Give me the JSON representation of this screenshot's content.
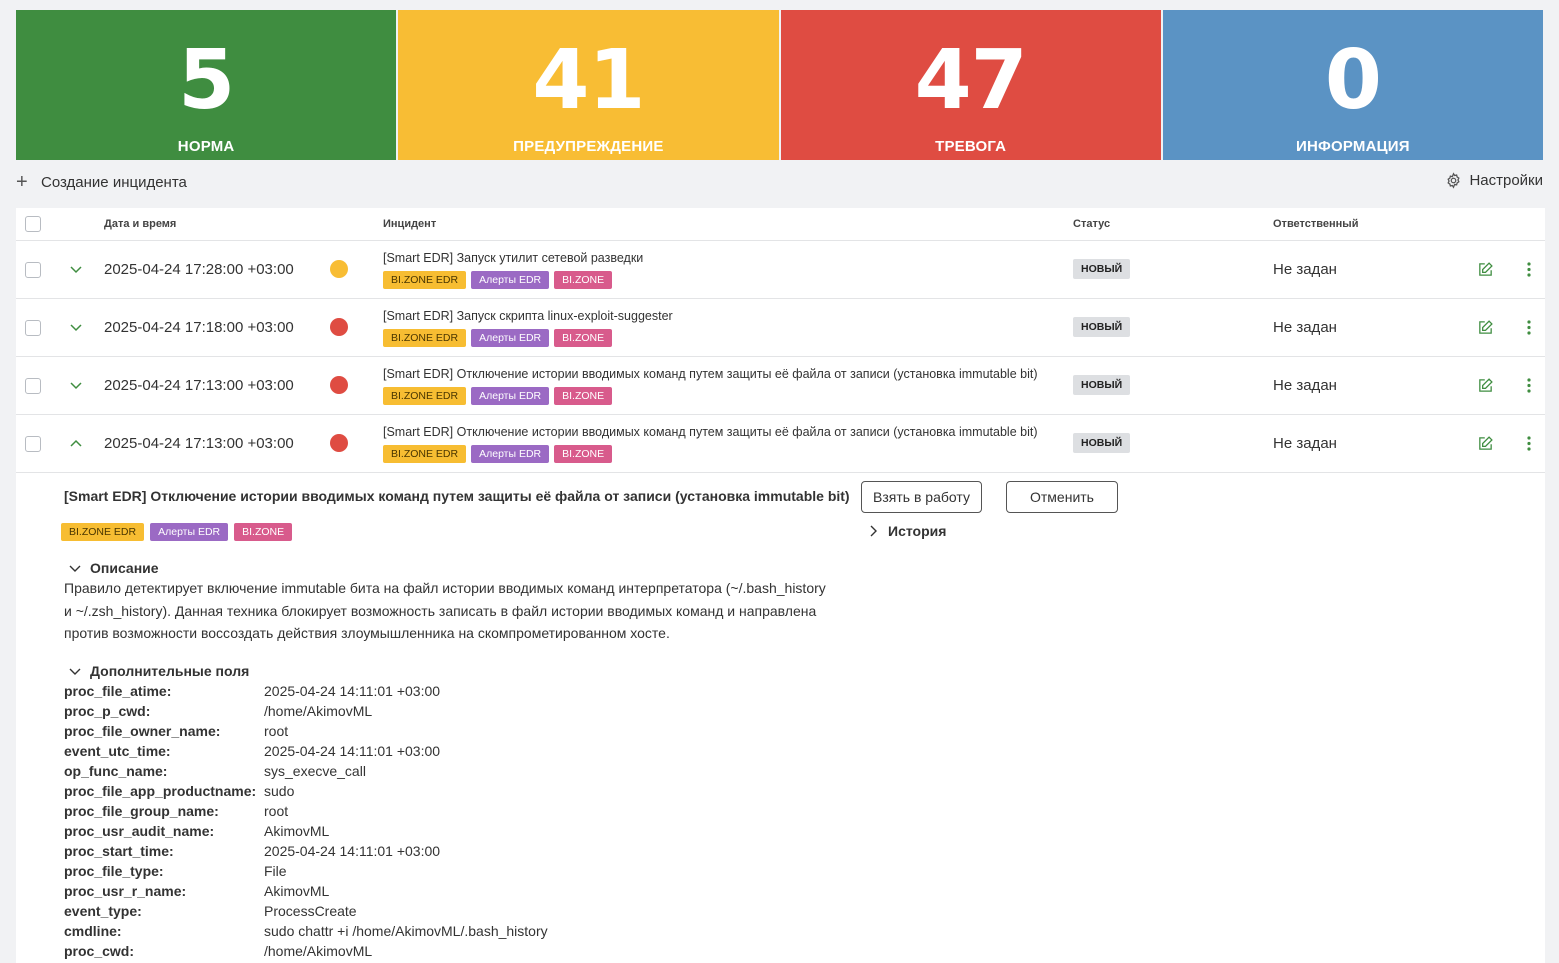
{
  "summary": [
    {
      "count": "5",
      "label": "НОРМА",
      "color": "#3f8d40"
    },
    {
      "count": "41",
      "label": "ПРЕДУПРЕЖДЕНИЕ",
      "color": "#f8bd34"
    },
    {
      "count": "47",
      "label": "ТРЕВОГА",
      "color": "#df4c42"
    },
    {
      "count": "0",
      "label": "ИНФОРМАЦИЯ",
      "color": "#5b93c4"
    }
  ],
  "toolbar": {
    "create_label": "Создание инцидента",
    "settings_label": "Настройки"
  },
  "table": {
    "headers": {
      "datetime": "Дата и время",
      "incident": "Инцидент",
      "status": "Статус",
      "assignee": "Ответственный"
    },
    "rows": [
      {
        "datetime": "2025-04-24 17:28:00 +03:00",
        "severity_color": "#f8bd34",
        "expanded": false,
        "title": "[Smart EDR] Запуск утилит сетевой разведки",
        "tags": [
          "BI.ZONE EDR",
          "Алерты EDR",
          "BI.ZONE"
        ],
        "status": "НОВЫЙ",
        "assignee": "Не задан"
      },
      {
        "datetime": "2025-04-24 17:18:00 +03:00",
        "severity_color": "#df4c42",
        "expanded": false,
        "title": "[Smart EDR] Запуск скрипта linux-exploit-suggester",
        "tags": [
          "BI.ZONE EDR",
          "Алерты EDR",
          "BI.ZONE"
        ],
        "status": "НОВЫЙ",
        "assignee": "Не задан"
      },
      {
        "datetime": "2025-04-24 17:13:00 +03:00",
        "severity_color": "#df4c42",
        "expanded": false,
        "title": "[Smart EDR] Отключение истории вводимых команд путем защиты её файла от записи (установка immutable bit)",
        "tags": [
          "BI.ZONE EDR",
          "Алерты EDR",
          "BI.ZONE"
        ],
        "status": "НОВЫЙ",
        "assignee": "Не задан"
      },
      {
        "datetime": "2025-04-24 17:13:00 +03:00",
        "severity_color": "#df4c42",
        "expanded": true,
        "title": "[Smart EDR] Отключение истории вводимых команд путем защиты её файла от записи (установка immutable bit)",
        "tags": [
          "BI.ZONE EDR",
          "Алерты EDR",
          "BI.ZONE"
        ],
        "status": "НОВЫЙ",
        "assignee": "Не задан"
      }
    ]
  },
  "detail": {
    "title": "[Smart EDR] Отключение истории вводимых команд путем защиты её файла от записи (установка immutable bit)",
    "tags": [
      "BI.ZONE EDR",
      "Алерты EDR",
      "BI.ZONE"
    ],
    "take_button": "Взять в работу",
    "cancel_button": "Отменить",
    "history_label": "История",
    "description_label": "Описание",
    "description_lines": [
      "Правило детектирует включение immutable бита на файл истории вводимых команд интерпретатора (~/.bash_history",
      "и ~/.zsh_history). Данная техника блокирует возможность записать в файл истории вводимых команд и направлена",
      "против возможности воссоздать действия злоумышленника на скомпрометированном хосте."
    ],
    "extra_fields_label": "Дополнительные поля",
    "fields": [
      {
        "key": "proc_file_atime:",
        "value": "2025-04-24 14:11:01 +03:00"
      },
      {
        "key": "proc_p_cwd:",
        "value": "/home/AkimovML"
      },
      {
        "key": "proc_file_owner_name:",
        "value": "root"
      },
      {
        "key": "event_utc_time:",
        "value": "2025-04-24 14:11:01 +03:00"
      },
      {
        "key": "op_func_name:",
        "value": "sys_execve_call"
      },
      {
        "key": "proc_file_app_productname:",
        "value": "sudo"
      },
      {
        "key": "proc_file_group_name:",
        "value": "root"
      },
      {
        "key": "proc_usr_audit_name:",
        "value": "AkimovML"
      },
      {
        "key": "proc_start_time:",
        "value": "2025-04-24 14:11:01 +03:00"
      },
      {
        "key": "proc_file_type:",
        "value": "File"
      },
      {
        "key": "proc_usr_r_name:",
        "value": "AkimovML"
      },
      {
        "key": "event_type:",
        "value": "ProcessCreate"
      },
      {
        "key": "cmdline:",
        "value": "sudo chattr +i /home/AkimovML/.bash_history"
      },
      {
        "key": "proc_cwd:",
        "value": "/home/AkimovML"
      }
    ]
  },
  "icons": {
    "plus": "plus-icon",
    "settings": "gear-icon",
    "expand": "chevron-down-icon",
    "collapse": "chevron-up-icon",
    "edit": "edit-icon",
    "more": "more-vertical-icon",
    "section": "chevron-down-icon",
    "history": "chevron-right-icon"
  },
  "colors": {
    "tag_edr": "#f7bd32",
    "tag_alerts": "#9b6ac4",
    "tag_bizone": "#d85b8c",
    "edit_icon": "#3f8d40"
  }
}
